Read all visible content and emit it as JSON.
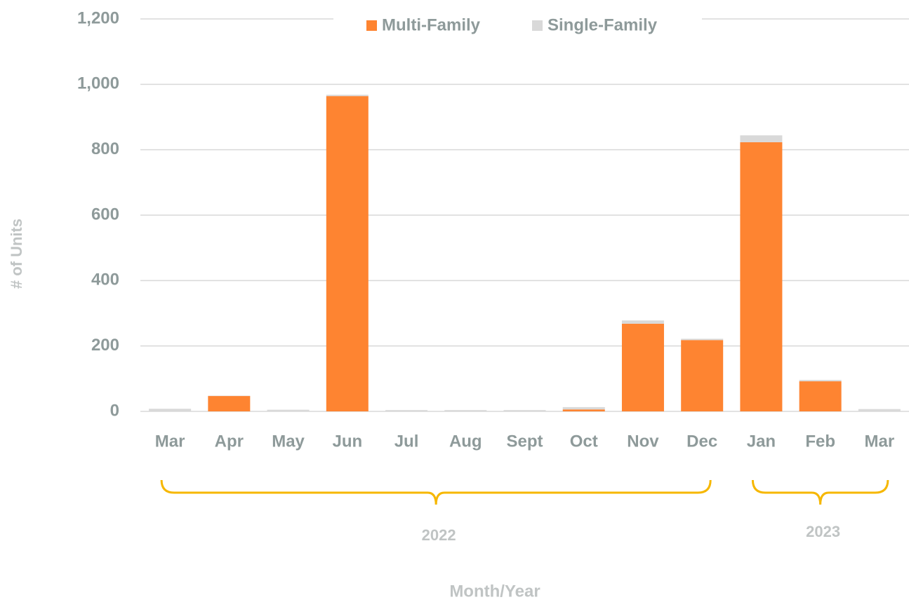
{
  "chart_data": {
    "type": "stacked_bar",
    "y_label": "# of Units",
    "x_label": "Month/Year",
    "categories": [
      "Mar",
      "Apr",
      "May",
      "Jun",
      "Jul",
      "Aug",
      "Sept",
      "Oct",
      "Nov",
      "Dec",
      "Jan",
      "Feb",
      "Mar"
    ],
    "series": [
      {
        "name": "Multi-Family",
        "color": "#fe8431",
        "values": [
          0,
          47,
          0,
          964,
          0,
          0,
          0,
          6,
          268,
          218,
          823,
          92,
          0
        ]
      },
      {
        "name": "Single-Family",
        "color": "#d9d9d9",
        "values": [
          8,
          1,
          5,
          4,
          4,
          4,
          4,
          7,
          10,
          4,
          21,
          4,
          7
        ]
      }
    ],
    "year_groups": [
      "2022",
      "2023"
    ],
    "ylim": [
      0,
      1200
    ],
    "yticks": [
      0,
      200,
      400,
      600,
      800,
      {
        "value": 1000,
        "label": "1,000"
      },
      {
        "value": 1200,
        "label": "1,200"
      }
    ],
    "grid": true,
    "legend": "top"
  }
}
